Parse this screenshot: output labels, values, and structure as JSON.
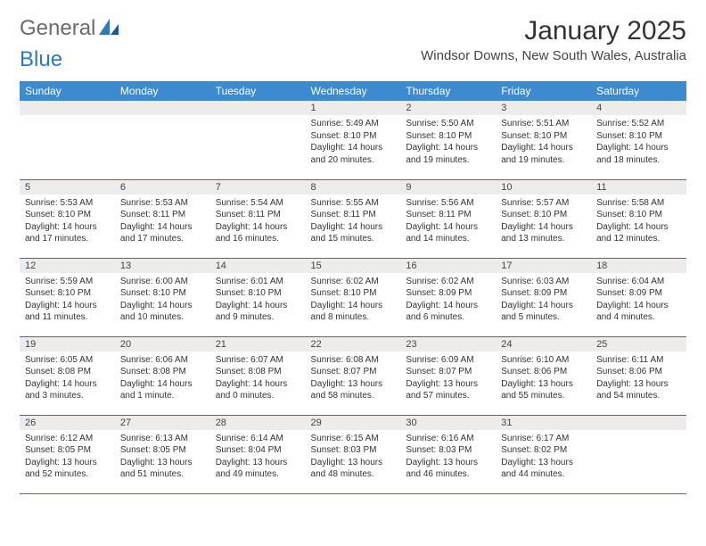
{
  "brand": {
    "part1": "General",
    "part2": "Blue"
  },
  "title": "January 2025",
  "location": "Windsor Downs, New South Wales, Australia",
  "colors": {
    "header_bg": "#3c8bd0",
    "header_text": "#ffffff",
    "daynum_bg": "#ececec",
    "row_border": "#3c6ea0",
    "logo_blue": "#2f78c2",
    "logo_gray": "#6b6b6b"
  },
  "weekdays": [
    "Sunday",
    "Monday",
    "Tuesday",
    "Wednesday",
    "Thursday",
    "Friday",
    "Saturday"
  ],
  "weeks": [
    [
      {
        "blank": true
      },
      {
        "blank": true
      },
      {
        "blank": true
      },
      {
        "n": "1",
        "sr": "Sunrise: 5:49 AM",
        "ss": "Sunset: 8:10 PM",
        "d1": "Daylight: 14 hours",
        "d2": "and 20 minutes."
      },
      {
        "n": "2",
        "sr": "Sunrise: 5:50 AM",
        "ss": "Sunset: 8:10 PM",
        "d1": "Daylight: 14 hours",
        "d2": "and 19 minutes."
      },
      {
        "n": "3",
        "sr": "Sunrise: 5:51 AM",
        "ss": "Sunset: 8:10 PM",
        "d1": "Daylight: 14 hours",
        "d2": "and 19 minutes."
      },
      {
        "n": "4",
        "sr": "Sunrise: 5:52 AM",
        "ss": "Sunset: 8:10 PM",
        "d1": "Daylight: 14 hours",
        "d2": "and 18 minutes."
      }
    ],
    [
      {
        "n": "5",
        "sr": "Sunrise: 5:53 AM",
        "ss": "Sunset: 8:10 PM",
        "d1": "Daylight: 14 hours",
        "d2": "and 17 minutes."
      },
      {
        "n": "6",
        "sr": "Sunrise: 5:53 AM",
        "ss": "Sunset: 8:11 PM",
        "d1": "Daylight: 14 hours",
        "d2": "and 17 minutes."
      },
      {
        "n": "7",
        "sr": "Sunrise: 5:54 AM",
        "ss": "Sunset: 8:11 PM",
        "d1": "Daylight: 14 hours",
        "d2": "and 16 minutes."
      },
      {
        "n": "8",
        "sr": "Sunrise: 5:55 AM",
        "ss": "Sunset: 8:11 PM",
        "d1": "Daylight: 14 hours",
        "d2": "and 15 minutes."
      },
      {
        "n": "9",
        "sr": "Sunrise: 5:56 AM",
        "ss": "Sunset: 8:11 PM",
        "d1": "Daylight: 14 hours",
        "d2": "and 14 minutes."
      },
      {
        "n": "10",
        "sr": "Sunrise: 5:57 AM",
        "ss": "Sunset: 8:10 PM",
        "d1": "Daylight: 14 hours",
        "d2": "and 13 minutes."
      },
      {
        "n": "11",
        "sr": "Sunrise: 5:58 AM",
        "ss": "Sunset: 8:10 PM",
        "d1": "Daylight: 14 hours",
        "d2": "and 12 minutes."
      }
    ],
    [
      {
        "n": "12",
        "sr": "Sunrise: 5:59 AM",
        "ss": "Sunset: 8:10 PM",
        "d1": "Daylight: 14 hours",
        "d2": "and 11 minutes."
      },
      {
        "n": "13",
        "sr": "Sunrise: 6:00 AM",
        "ss": "Sunset: 8:10 PM",
        "d1": "Daylight: 14 hours",
        "d2": "and 10 minutes."
      },
      {
        "n": "14",
        "sr": "Sunrise: 6:01 AM",
        "ss": "Sunset: 8:10 PM",
        "d1": "Daylight: 14 hours",
        "d2": "and 9 minutes."
      },
      {
        "n": "15",
        "sr": "Sunrise: 6:02 AM",
        "ss": "Sunset: 8:10 PM",
        "d1": "Daylight: 14 hours",
        "d2": "and 8 minutes."
      },
      {
        "n": "16",
        "sr": "Sunrise: 6:02 AM",
        "ss": "Sunset: 8:09 PM",
        "d1": "Daylight: 14 hours",
        "d2": "and 6 minutes."
      },
      {
        "n": "17",
        "sr": "Sunrise: 6:03 AM",
        "ss": "Sunset: 8:09 PM",
        "d1": "Daylight: 14 hours",
        "d2": "and 5 minutes."
      },
      {
        "n": "18",
        "sr": "Sunrise: 6:04 AM",
        "ss": "Sunset: 8:09 PM",
        "d1": "Daylight: 14 hours",
        "d2": "and 4 minutes."
      }
    ],
    [
      {
        "n": "19",
        "sr": "Sunrise: 6:05 AM",
        "ss": "Sunset: 8:08 PM",
        "d1": "Daylight: 14 hours",
        "d2": "and 3 minutes."
      },
      {
        "n": "20",
        "sr": "Sunrise: 6:06 AM",
        "ss": "Sunset: 8:08 PM",
        "d1": "Daylight: 14 hours",
        "d2": "and 1 minute."
      },
      {
        "n": "21",
        "sr": "Sunrise: 6:07 AM",
        "ss": "Sunset: 8:08 PM",
        "d1": "Daylight: 14 hours",
        "d2": "and 0 minutes."
      },
      {
        "n": "22",
        "sr": "Sunrise: 6:08 AM",
        "ss": "Sunset: 8:07 PM",
        "d1": "Daylight: 13 hours",
        "d2": "and 58 minutes."
      },
      {
        "n": "23",
        "sr": "Sunrise: 6:09 AM",
        "ss": "Sunset: 8:07 PM",
        "d1": "Daylight: 13 hours",
        "d2": "and 57 minutes."
      },
      {
        "n": "24",
        "sr": "Sunrise: 6:10 AM",
        "ss": "Sunset: 8:06 PM",
        "d1": "Daylight: 13 hours",
        "d2": "and 55 minutes."
      },
      {
        "n": "25",
        "sr": "Sunrise: 6:11 AM",
        "ss": "Sunset: 8:06 PM",
        "d1": "Daylight: 13 hours",
        "d2": "and 54 minutes."
      }
    ],
    [
      {
        "n": "26",
        "sr": "Sunrise: 6:12 AM",
        "ss": "Sunset: 8:05 PM",
        "d1": "Daylight: 13 hours",
        "d2": "and 52 minutes."
      },
      {
        "n": "27",
        "sr": "Sunrise: 6:13 AM",
        "ss": "Sunset: 8:05 PM",
        "d1": "Daylight: 13 hours",
        "d2": "and 51 minutes."
      },
      {
        "n": "28",
        "sr": "Sunrise: 6:14 AM",
        "ss": "Sunset: 8:04 PM",
        "d1": "Daylight: 13 hours",
        "d2": "and 49 minutes."
      },
      {
        "n": "29",
        "sr": "Sunrise: 6:15 AM",
        "ss": "Sunset: 8:03 PM",
        "d1": "Daylight: 13 hours",
        "d2": "and 48 minutes."
      },
      {
        "n": "30",
        "sr": "Sunrise: 6:16 AM",
        "ss": "Sunset: 8:03 PM",
        "d1": "Daylight: 13 hours",
        "d2": "and 46 minutes."
      },
      {
        "n": "31",
        "sr": "Sunrise: 6:17 AM",
        "ss": "Sunset: 8:02 PM",
        "d1": "Daylight: 13 hours",
        "d2": "and 44 minutes."
      },
      {
        "blank": true
      }
    ]
  ]
}
